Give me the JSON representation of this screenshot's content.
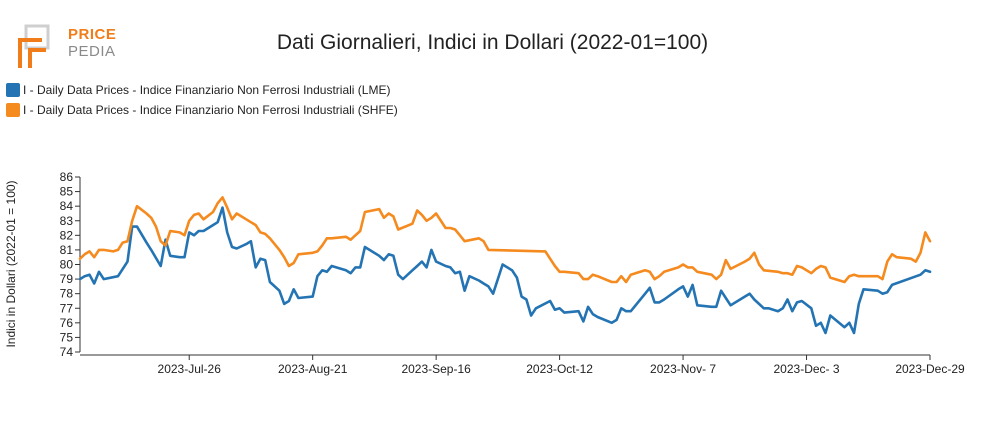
{
  "logo": {
    "top": "PRICE",
    "bottom": "PEDIA"
  },
  "chart_data": {
    "type": "line",
    "title": "Dati Giornalieri, Indici in Dollari (2022-01=100)",
    "ylabel": "Indici in Dollari (2022-01 = 100)",
    "xlabel": "",
    "ylim": [
      74,
      86
    ],
    "yticks": [
      74,
      75,
      76,
      77,
      78,
      79,
      80,
      81,
      82,
      83,
      84,
      85,
      86
    ],
    "x_range": [
      "2023-07-03",
      "2023-12-29"
    ],
    "xticks": [
      {
        "date": "2023-07-26",
        "label": "2023-Jul-26"
      },
      {
        "date": "2023-08-21",
        "label": "2023-Aug-21"
      },
      {
        "date": "2023-09-16",
        "label": "2023-Sep-16"
      },
      {
        "date": "2023-10-12",
        "label": "2023-Oct-12"
      },
      {
        "date": "2023-11-07",
        "label": "2023-Nov- 7"
      },
      {
        "date": "2023-12-03",
        "label": "2023-Dec- 3"
      },
      {
        "date": "2023-12-29",
        "label": "2023-Dec-29"
      }
    ],
    "grid": false,
    "legend_position": "top-left",
    "series": [
      {
        "name": "I - Daily Data Prices - Indice Finanziario Non Ferrosi Industriali (LME)",
        "color": "#2474b3",
        "points": [
          [
            "2023-07-03",
            79.0
          ],
          [
            "2023-07-04",
            79.2
          ],
          [
            "2023-07-05",
            79.3
          ],
          [
            "2023-07-06",
            78.7
          ],
          [
            "2023-07-07",
            79.5
          ],
          [
            "2023-07-08",
            79.0
          ],
          [
            "2023-07-11",
            79.2
          ],
          [
            "2023-07-13",
            80.2
          ],
          [
            "2023-07-14",
            82.6
          ],
          [
            "2023-07-15",
            82.6
          ],
          [
            "2023-07-17",
            81.5
          ],
          [
            "2023-07-18",
            81.0
          ],
          [
            "2023-07-20",
            79.9
          ],
          [
            "2023-07-21",
            81.7
          ],
          [
            "2023-07-22",
            80.6
          ],
          [
            "2023-07-24",
            80.5
          ],
          [
            "2023-07-25",
            80.5
          ],
          [
            "2023-07-26",
            82.2
          ],
          [
            "2023-07-27",
            82.0
          ],
          [
            "2023-07-28",
            82.3
          ],
          [
            "2023-07-29",
            82.3
          ],
          [
            "2023-07-31",
            82.7
          ],
          [
            "2023-08-01",
            82.9
          ],
          [
            "2023-08-02",
            83.9
          ],
          [
            "2023-08-03",
            82.2
          ],
          [
            "2023-08-04",
            81.2
          ],
          [
            "2023-08-05",
            81.1
          ],
          [
            "2023-08-07",
            81.4
          ],
          [
            "2023-08-08",
            81.6
          ],
          [
            "2023-08-09",
            79.8
          ],
          [
            "2023-08-10",
            80.4
          ],
          [
            "2023-08-11",
            80.3
          ],
          [
            "2023-08-12",
            78.8
          ],
          [
            "2023-08-14",
            78.2
          ],
          [
            "2023-08-15",
            77.3
          ],
          [
            "2023-08-16",
            77.5
          ],
          [
            "2023-08-17",
            78.3
          ],
          [
            "2023-08-18",
            77.7
          ],
          [
            "2023-08-21",
            77.8
          ],
          [
            "2023-08-22",
            79.2
          ],
          [
            "2023-08-23",
            79.6
          ],
          [
            "2023-08-24",
            79.5
          ],
          [
            "2023-08-25",
            79.9
          ],
          [
            "2023-08-28",
            79.6
          ],
          [
            "2023-08-29",
            79.4
          ],
          [
            "2023-08-30",
            79.8
          ],
          [
            "2023-08-31",
            79.8
          ],
          [
            "2023-09-01",
            81.2
          ],
          [
            "2023-09-04",
            80.6
          ],
          [
            "2023-09-05",
            80.3
          ],
          [
            "2023-09-06",
            80.7
          ],
          [
            "2023-09-07",
            80.6
          ],
          [
            "2023-09-08",
            79.3
          ],
          [
            "2023-09-09",
            79.0
          ],
          [
            "2023-09-11",
            79.6
          ],
          [
            "2023-09-12",
            79.9
          ],
          [
            "2023-09-13",
            80.2
          ],
          [
            "2023-09-14",
            79.8
          ],
          [
            "2023-09-15",
            81.0
          ],
          [
            "2023-09-16",
            80.2
          ],
          [
            "2023-09-18",
            79.9
          ],
          [
            "2023-09-19",
            79.8
          ],
          [
            "2023-09-20",
            79.4
          ],
          [
            "2023-09-21",
            79.5
          ],
          [
            "2023-09-22",
            78.2
          ],
          [
            "2023-09-23",
            79.2
          ],
          [
            "2023-09-25",
            78.9
          ],
          [
            "2023-09-26",
            78.7
          ],
          [
            "2023-09-27",
            78.5
          ],
          [
            "2023-09-28",
            78.0
          ],
          [
            "2023-09-30",
            80.0
          ],
          [
            "2023-10-02",
            79.6
          ],
          [
            "2023-10-03",
            79.1
          ],
          [
            "2023-10-04",
            77.8
          ],
          [
            "2023-10-05",
            77.6
          ],
          [
            "2023-10-06",
            76.5
          ],
          [
            "2023-10-07",
            77.0
          ],
          [
            "2023-10-10",
            77.5
          ],
          [
            "2023-10-11",
            76.9
          ],
          [
            "2023-10-12",
            77.0
          ],
          [
            "2023-10-13",
            76.7
          ],
          [
            "2023-10-16",
            76.8
          ],
          [
            "2023-10-17",
            76.1
          ],
          [
            "2023-10-18",
            77.1
          ],
          [
            "2023-10-19",
            76.6
          ],
          [
            "2023-10-20",
            76.4
          ],
          [
            "2023-10-23",
            76.0
          ],
          [
            "2023-10-24",
            76.2
          ],
          [
            "2023-10-25",
            77.0
          ],
          [
            "2023-10-26",
            76.8
          ],
          [
            "2023-10-27",
            76.8
          ],
          [
            "2023-10-30",
            78.0
          ],
          [
            "2023-10-31",
            78.4
          ],
          [
            "2023-11-01",
            77.4
          ],
          [
            "2023-11-02",
            77.4
          ],
          [
            "2023-11-03",
            77.6
          ],
          [
            "2023-11-06",
            78.3
          ],
          [
            "2023-11-07",
            78.5
          ],
          [
            "2023-11-08",
            77.8
          ],
          [
            "2023-11-09",
            78.6
          ],
          [
            "2023-11-10",
            77.2
          ],
          [
            "2023-11-13",
            77.1
          ],
          [
            "2023-11-14",
            77.1
          ],
          [
            "2023-11-15",
            78.2
          ],
          [
            "2023-11-16",
            77.7
          ],
          [
            "2023-11-17",
            77.2
          ],
          [
            "2023-11-20",
            77.8
          ],
          [
            "2023-11-21",
            78.0
          ],
          [
            "2023-11-22",
            77.6
          ],
          [
            "2023-11-24",
            77.0
          ],
          [
            "2023-11-25",
            77.0
          ],
          [
            "2023-11-27",
            76.8
          ],
          [
            "2023-11-28",
            77.0
          ],
          [
            "2023-11-29",
            77.6
          ],
          [
            "2023-11-30",
            76.8
          ],
          [
            "2023-12-01",
            77.4
          ],
          [
            "2023-12-02",
            77.5
          ],
          [
            "2023-12-04",
            77.0
          ],
          [
            "2023-12-05",
            75.8
          ],
          [
            "2023-12-06",
            76.0
          ],
          [
            "2023-12-07",
            75.3
          ],
          [
            "2023-12-08",
            76.5
          ],
          [
            "2023-12-11",
            75.7
          ],
          [
            "2023-12-12",
            76.0
          ],
          [
            "2023-12-13",
            75.3
          ],
          [
            "2023-12-14",
            77.3
          ],
          [
            "2023-12-15",
            78.3
          ],
          [
            "2023-12-18",
            78.2
          ],
          [
            "2023-12-19",
            78.0
          ],
          [
            "2023-12-20",
            78.1
          ],
          [
            "2023-12-21",
            78.6
          ],
          [
            "2023-12-27",
            79.3
          ],
          [
            "2023-12-28",
            79.6
          ],
          [
            "2023-12-29",
            79.5
          ]
        ]
      },
      {
        "name": "I - Daily Data Prices - Indice Finanziario Non Ferrosi Industriali (SHFE)",
        "color": "#f58a1f",
        "points": [
          [
            "2023-07-03",
            80.4
          ],
          [
            "2023-07-04",
            80.7
          ],
          [
            "2023-07-05",
            80.9
          ],
          [
            "2023-07-06",
            80.5
          ],
          [
            "2023-07-07",
            81.0
          ],
          [
            "2023-07-08",
            81.0
          ],
          [
            "2023-07-10",
            80.9
          ],
          [
            "2023-07-11",
            81.0
          ],
          [
            "2023-07-12",
            81.5
          ],
          [
            "2023-07-13",
            81.6
          ],
          [
            "2023-07-14",
            83.0
          ],
          [
            "2023-07-15",
            84.0
          ],
          [
            "2023-07-17",
            83.5
          ],
          [
            "2023-07-18",
            83.2
          ],
          [
            "2023-07-19",
            82.6
          ],
          [
            "2023-07-20",
            81.6
          ],
          [
            "2023-07-21",
            81.3
          ],
          [
            "2023-07-22",
            82.3
          ],
          [
            "2023-07-24",
            82.2
          ],
          [
            "2023-07-25",
            82.0
          ],
          [
            "2023-07-26",
            83.0
          ],
          [
            "2023-07-27",
            83.4
          ],
          [
            "2023-07-28",
            83.5
          ],
          [
            "2023-07-29",
            83.1
          ],
          [
            "2023-07-31",
            83.6
          ],
          [
            "2023-08-01",
            84.2
          ],
          [
            "2023-08-02",
            84.6
          ],
          [
            "2023-08-03",
            83.9
          ],
          [
            "2023-08-04",
            83.1
          ],
          [
            "2023-08-05",
            83.5
          ],
          [
            "2023-08-07",
            83.1
          ],
          [
            "2023-08-08",
            82.9
          ],
          [
            "2023-08-09",
            82.7
          ],
          [
            "2023-08-10",
            82.2
          ],
          [
            "2023-08-11",
            82.1
          ],
          [
            "2023-08-12",
            81.8
          ],
          [
            "2023-08-14",
            81.0
          ],
          [
            "2023-08-15",
            80.5
          ],
          [
            "2023-08-16",
            79.9
          ],
          [
            "2023-08-17",
            80.1
          ],
          [
            "2023-08-18",
            80.7
          ],
          [
            "2023-08-21",
            80.8
          ],
          [
            "2023-08-22",
            80.9
          ],
          [
            "2023-08-23",
            81.3
          ],
          [
            "2023-08-24",
            81.8
          ],
          [
            "2023-08-25",
            81.8
          ],
          [
            "2023-08-28",
            81.9
          ],
          [
            "2023-08-29",
            81.7
          ],
          [
            "2023-08-30",
            82.0
          ],
          [
            "2023-08-31",
            82.3
          ],
          [
            "2023-09-01",
            83.6
          ],
          [
            "2023-09-04",
            83.8
          ],
          [
            "2023-09-05",
            83.2
          ],
          [
            "2023-09-06",
            83.5
          ],
          [
            "2023-09-07",
            83.3
          ],
          [
            "2023-09-08",
            82.4
          ],
          [
            "2023-09-11",
            82.8
          ],
          [
            "2023-09-12",
            83.7
          ],
          [
            "2023-09-13",
            83.4
          ],
          [
            "2023-09-14",
            83.0
          ],
          [
            "2023-09-15",
            83.2
          ],
          [
            "2023-09-16",
            83.5
          ],
          [
            "2023-09-18",
            82.5
          ],
          [
            "2023-09-19",
            82.5
          ],
          [
            "2023-09-20",
            82.4
          ],
          [
            "2023-09-21",
            82.0
          ],
          [
            "2023-09-22",
            81.6
          ],
          [
            "2023-09-25",
            81.8
          ],
          [
            "2023-09-26",
            81.6
          ],
          [
            "2023-09-27",
            81.0
          ],
          [
            "2023-10-09",
            80.9
          ],
          [
            "2023-10-10",
            80.4
          ],
          [
            "2023-10-11",
            79.9
          ],
          [
            "2023-10-12",
            79.5
          ],
          [
            "2023-10-13",
            79.5
          ],
          [
            "2023-10-16",
            79.4
          ],
          [
            "2023-10-17",
            79.0
          ],
          [
            "2023-10-18",
            79.0
          ],
          [
            "2023-10-19",
            79.3
          ],
          [
            "2023-10-20",
            79.2
          ],
          [
            "2023-10-23",
            78.8
          ],
          [
            "2023-10-24",
            78.8
          ],
          [
            "2023-10-25",
            79.2
          ],
          [
            "2023-10-26",
            78.8
          ],
          [
            "2023-10-27",
            79.3
          ],
          [
            "2023-10-30",
            79.6
          ],
          [
            "2023-10-31",
            79.5
          ],
          [
            "2023-11-01",
            79.0
          ],
          [
            "2023-11-02",
            79.2
          ],
          [
            "2023-11-03",
            79.5
          ],
          [
            "2023-11-06",
            79.8
          ],
          [
            "2023-11-07",
            80.0
          ],
          [
            "2023-11-08",
            79.8
          ],
          [
            "2023-11-09",
            79.8
          ],
          [
            "2023-11-10",
            79.5
          ],
          [
            "2023-11-13",
            79.3
          ],
          [
            "2023-11-14",
            79.0
          ],
          [
            "2023-11-15",
            79.3
          ],
          [
            "2023-11-16",
            80.3
          ],
          [
            "2023-11-17",
            79.7
          ],
          [
            "2023-11-20",
            80.2
          ],
          [
            "2023-11-21",
            80.4
          ],
          [
            "2023-11-22",
            80.8
          ],
          [
            "2023-11-23",
            80.0
          ],
          [
            "2023-11-24",
            79.6
          ],
          [
            "2023-11-27",
            79.5
          ],
          [
            "2023-11-28",
            79.4
          ],
          [
            "2023-11-29",
            79.4
          ],
          [
            "2023-11-30",
            79.3
          ],
          [
            "2023-12-01",
            79.9
          ],
          [
            "2023-12-02",
            79.8
          ],
          [
            "2023-12-04",
            79.4
          ],
          [
            "2023-12-05",
            79.7
          ],
          [
            "2023-12-06",
            79.9
          ],
          [
            "2023-12-07",
            79.8
          ],
          [
            "2023-12-08",
            79.1
          ],
          [
            "2023-12-11",
            78.8
          ],
          [
            "2023-12-12",
            79.2
          ],
          [
            "2023-12-13",
            79.3
          ],
          [
            "2023-12-14",
            79.2
          ],
          [
            "2023-12-15",
            79.2
          ],
          [
            "2023-12-18",
            79.2
          ],
          [
            "2023-12-19",
            79.0
          ],
          [
            "2023-12-20",
            80.2
          ],
          [
            "2023-12-21",
            80.7
          ],
          [
            "2023-12-22",
            80.5
          ],
          [
            "2023-12-25",
            80.4
          ],
          [
            "2023-12-26",
            80.2
          ],
          [
            "2023-12-27",
            80.8
          ],
          [
            "2023-12-28",
            82.2
          ],
          [
            "2023-12-29",
            81.6
          ]
        ]
      }
    ]
  }
}
